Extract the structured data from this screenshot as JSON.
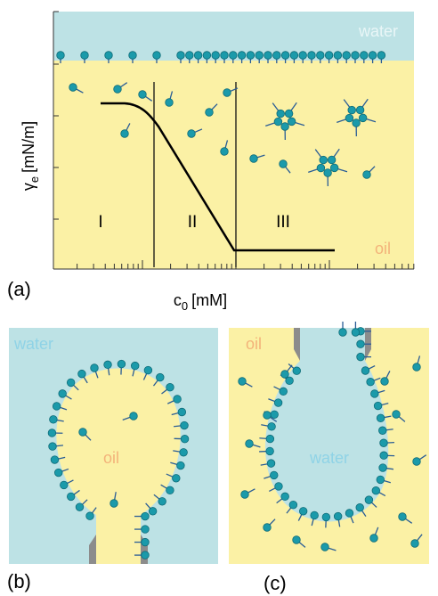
{
  "panel_a": {
    "label": "(a)",
    "water": "water",
    "oil": "oil",
    "y_axis": {
      "symbol": "γ",
      "subscript": "e",
      "unit": "[mN/m]"
    },
    "x_axis": {
      "symbol": "c",
      "subscript": "0",
      "unit": "[mM]"
    },
    "regions": [
      "I",
      "II",
      "III"
    ]
  },
  "panel_b": {
    "label": "(b)",
    "water": "water",
    "oil": "oil"
  },
  "panel_c": {
    "label": "(c)",
    "water": "water",
    "oil": "oil"
  }
}
